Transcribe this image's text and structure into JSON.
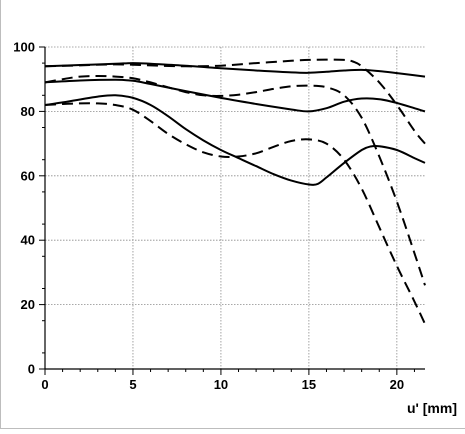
{
  "chart_data": {
    "type": "line",
    "title": "",
    "xlabel": "u' [mm]",
    "ylabel": "",
    "xlim": [
      0,
      21.6
    ],
    "ylim": [
      0,
      100
    ],
    "xticks": [
      0,
      5,
      10,
      15,
      20
    ],
    "yticks": [
      0,
      20,
      40,
      60,
      80,
      100
    ],
    "grid": true,
    "legend": "none",
    "series": [
      {
        "style": "solid",
        "color": "#000000",
        "points": [
          [
            0,
            94
          ],
          [
            2,
            94.4
          ],
          [
            4,
            94.8
          ],
          [
            5,
            95
          ],
          [
            6,
            94.8
          ],
          [
            8,
            94.2
          ],
          [
            10,
            93.4
          ],
          [
            12,
            92.7
          ],
          [
            14,
            92.1
          ],
          [
            15,
            92
          ],
          [
            16,
            92.3
          ],
          [
            17,
            92.7
          ],
          [
            18,
            92.9
          ],
          [
            19,
            92.5
          ],
          [
            20,
            91.9
          ],
          [
            21,
            91.2
          ],
          [
            21.6,
            90.8
          ]
        ]
      },
      {
        "style": "solid",
        "color": "#000000",
        "points": [
          [
            0,
            89
          ],
          [
            2,
            89.6
          ],
          [
            4,
            89.8
          ],
          [
            5,
            89.5
          ],
          [
            6,
            88.5
          ],
          [
            8,
            86.3
          ],
          [
            10,
            84.2
          ],
          [
            12,
            82.3
          ],
          [
            14,
            80.6
          ],
          [
            15,
            80
          ],
          [
            16,
            81
          ],
          [
            17,
            83
          ],
          [
            18,
            84
          ],
          [
            19,
            83.8
          ],
          [
            20,
            82.6
          ],
          [
            21,
            81
          ],
          [
            21.6,
            80
          ]
        ]
      },
      {
        "style": "solid",
        "color": "#000000",
        "points": [
          [
            0,
            82
          ],
          [
            1,
            82.8
          ],
          [
            2,
            83.7
          ],
          [
            3,
            84.6
          ],
          [
            4,
            85
          ],
          [
            5,
            84.2
          ],
          [
            6,
            82
          ],
          [
            7,
            78.5
          ],
          [
            8,
            74.5
          ],
          [
            9,
            71
          ],
          [
            10,
            68
          ],
          [
            11,
            65.5
          ],
          [
            12,
            63
          ],
          [
            13,
            60.5
          ],
          [
            14,
            58.5
          ],
          [
            15,
            57.3
          ],
          [
            15.5,
            57.5
          ],
          [
            16,
            59.5
          ],
          [
            17,
            64
          ],
          [
            18,
            68
          ],
          [
            18.5,
            69.1
          ],
          [
            19,
            69.2
          ],
          [
            20,
            68
          ],
          [
            21,
            65.5
          ],
          [
            21.6,
            64
          ]
        ]
      },
      {
        "style": "dashed",
        "color": "#000000",
        "points": [
          [
            0,
            94
          ],
          [
            2,
            94.3
          ],
          [
            4,
            94.6
          ],
          [
            6,
            94.3
          ],
          [
            8,
            94
          ],
          [
            10,
            94.2
          ],
          [
            12,
            95
          ],
          [
            14,
            95.7
          ],
          [
            15,
            96
          ],
          [
            16,
            96.1
          ],
          [
            17,
            96
          ],
          [
            17.5,
            95.5
          ],
          [
            18,
            94
          ],
          [
            19,
            89
          ],
          [
            20,
            82
          ],
          [
            21,
            74
          ],
          [
            21.6,
            70
          ]
        ]
      },
      {
        "style": "dashed",
        "color": "#000000",
        "points": [
          [
            0,
            89
          ],
          [
            1,
            90
          ],
          [
            2,
            90.8
          ],
          [
            3,
            91
          ],
          [
            4,
            90.8
          ],
          [
            5,
            90.3
          ],
          [
            6,
            89
          ],
          [
            7,
            87.5
          ],
          [
            8,
            86
          ],
          [
            9,
            85
          ],
          [
            10,
            84.8
          ],
          [
            11,
            85.2
          ],
          [
            12,
            86
          ],
          [
            13,
            87
          ],
          [
            14,
            87.8
          ],
          [
            15,
            88
          ],
          [
            16,
            87.5
          ],
          [
            17,
            85
          ],
          [
            18,
            78
          ],
          [
            19,
            66
          ],
          [
            20,
            52
          ],
          [
            21,
            36
          ],
          [
            21.6,
            26
          ]
        ]
      },
      {
        "style": "dashed",
        "color": "#000000",
        "points": [
          [
            0,
            82
          ],
          [
            1,
            82.3
          ],
          [
            2,
            82.5
          ],
          [
            3,
            82.5
          ],
          [
            4,
            82
          ],
          [
            5,
            80.5
          ],
          [
            6,
            77
          ],
          [
            7,
            73
          ],
          [
            8,
            69.8
          ],
          [
            9,
            67.3
          ],
          [
            10,
            66
          ],
          [
            11,
            66
          ],
          [
            12,
            67
          ],
          [
            13,
            69
          ],
          [
            14,
            70.8
          ],
          [
            15,
            71.3
          ],
          [
            16,
            70
          ],
          [
            17,
            65
          ],
          [
            18,
            56
          ],
          [
            19,
            44
          ],
          [
            20,
            32
          ],
          [
            21,
            21
          ],
          [
            21.6,
            14
          ]
        ]
      }
    ]
  }
}
